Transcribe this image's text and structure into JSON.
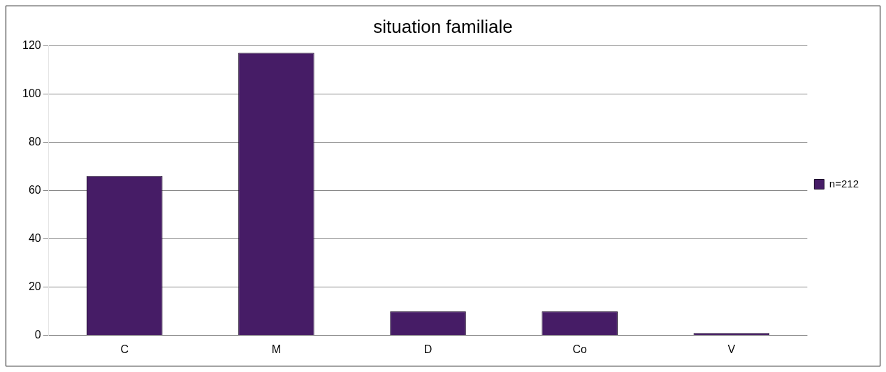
{
  "chart_data": {
    "type": "bar",
    "title": "situation familiale",
    "categories": [
      "C",
      "M",
      "D",
      "Co",
      "V"
    ],
    "series": [
      {
        "name": "n=212",
        "color": "#461c66",
        "values": [
          66,
          117,
          10,
          10,
          1
        ]
      }
    ],
    "ylim": [
      0,
      120
    ],
    "yticks": [
      0,
      20,
      40,
      60,
      80,
      100,
      120
    ],
    "grid": "y",
    "legend": "right"
  }
}
